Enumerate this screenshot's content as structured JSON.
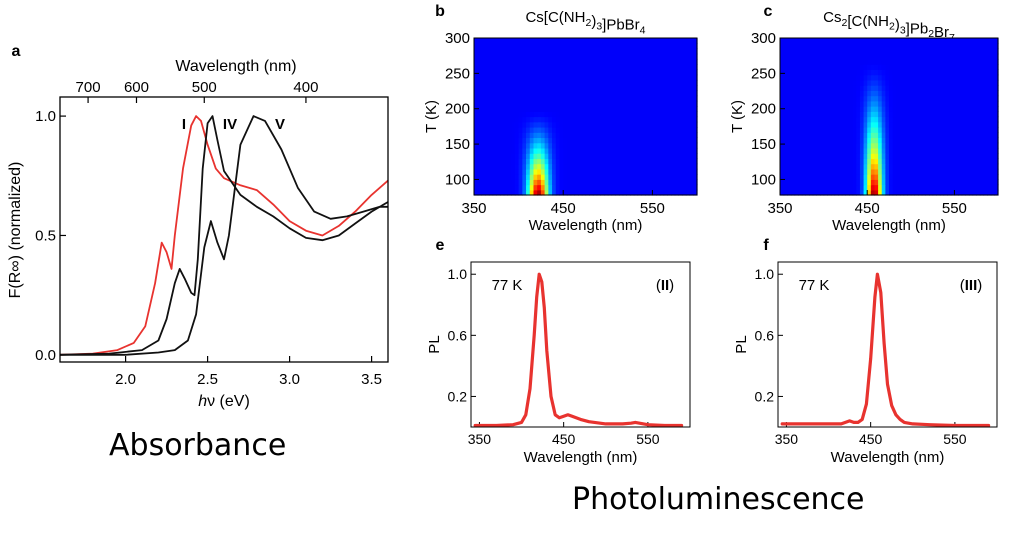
{
  "captions": {
    "absorbance": "Absorbance",
    "photoluminescence": "Photoluminescence"
  },
  "chart_data": [
    {
      "id": "a",
      "panel_letter": "a",
      "type": "line",
      "title": "",
      "xlabel": "hν (eV)",
      "ylabel": "F(R∞) (normalized)",
      "top_xlabel": "Wavelength (nm)",
      "xlim": [
        1.6,
        3.6
      ],
      "ylim": [
        -0.03,
        1.08
      ],
      "xticks": [
        2.0,
        2.5,
        3.0,
        3.5
      ],
      "xtick_labels": [
        "2.0",
        "2.5",
        "3.0",
        "3.5"
      ],
      "yticks": [
        0.0,
        0.5,
        1.0
      ],
      "ytick_labels": [
        "0.0",
        "0.5",
        "1.0"
      ],
      "top_ticks_nm": [
        700,
        600,
        500,
        400
      ],
      "top_tick_labels": [
        "700",
        "600",
        "500",
        "400"
      ],
      "annotations": [
        "I",
        "IV",
        "V"
      ],
      "series": [
        {
          "label": "I",
          "color": "#e8332f",
          "x": [
            1.6,
            1.8,
            1.95,
            2.05,
            2.12,
            2.18,
            2.22,
            2.25,
            2.28,
            2.3,
            2.35,
            2.4,
            2.43,
            2.46,
            2.5,
            2.55,
            2.6,
            2.7,
            2.8,
            2.9,
            3.0,
            3.1,
            3.2,
            3.3,
            3.4,
            3.5,
            3.6
          ],
          "y": [
            0.0,
            0.005,
            0.02,
            0.05,
            0.12,
            0.3,
            0.47,
            0.43,
            0.36,
            0.5,
            0.78,
            0.96,
            1.0,
            0.98,
            0.88,
            0.78,
            0.74,
            0.71,
            0.69,
            0.63,
            0.56,
            0.52,
            0.5,
            0.54,
            0.6,
            0.67,
            0.73
          ]
        },
        {
          "label": "IV",
          "color": "#111111",
          "x": [
            1.6,
            1.9,
            2.1,
            2.2,
            2.25,
            2.3,
            2.33,
            2.36,
            2.4,
            2.42,
            2.44,
            2.47,
            2.5,
            2.53,
            2.56,
            2.6,
            2.7,
            2.8,
            2.9,
            3.0,
            3.1,
            3.2,
            3.3,
            3.4,
            3.5,
            3.6
          ],
          "y": [
            0.0,
            0.005,
            0.02,
            0.06,
            0.15,
            0.3,
            0.36,
            0.32,
            0.26,
            0.25,
            0.4,
            0.78,
            0.97,
            1.0,
            0.9,
            0.77,
            0.67,
            0.62,
            0.58,
            0.53,
            0.49,
            0.48,
            0.5,
            0.55,
            0.6,
            0.64
          ]
        },
        {
          "label": "V",
          "color": "#111111",
          "x": [
            1.6,
            2.0,
            2.2,
            2.3,
            2.38,
            2.43,
            2.48,
            2.52,
            2.56,
            2.6,
            2.63,
            2.7,
            2.78,
            2.85,
            2.95,
            3.05,
            3.15,
            3.25,
            3.35,
            3.45,
            3.55,
            3.6
          ],
          "y": [
            0.0,
            0.0,
            0.01,
            0.02,
            0.06,
            0.17,
            0.45,
            0.56,
            0.47,
            0.4,
            0.5,
            0.88,
            1.0,
            0.98,
            0.86,
            0.7,
            0.6,
            0.57,
            0.58,
            0.6,
            0.62,
            0.62
          ]
        }
      ]
    },
    {
      "id": "b",
      "panel_letter": "b",
      "type": "heatmap",
      "title": "Cs[C(NH₂)₃]PbBr₄",
      "xlabel": "Wavelength (nm)",
      "ylabel": "T (K)",
      "xlim": [
        350,
        600
      ],
      "ylim": [
        78,
        300
      ],
      "xticks": [
        350,
        450,
        550
      ],
      "xtick_labels": [
        "350",
        "450",
        "550"
      ],
      "yticks": [
        100,
        150,
        200,
        250,
        300
      ],
      "ytick_labels": [
        "100",
        "150",
        "200",
        "250",
        "300"
      ],
      "peak_wavelength_nm": 422,
      "peak_width_nm": 11,
      "emission_extent_T": 200
    },
    {
      "id": "c",
      "panel_letter": "c",
      "type": "heatmap",
      "title": "Cs₂[C(NH₂)₃]Pb₂Br₇",
      "xlabel": "Wavelength (nm)",
      "ylabel": "T (K)",
      "xlim": [
        350,
        600
      ],
      "ylim": [
        78,
        300
      ],
      "xticks": [
        350,
        450,
        550
      ],
      "xtick_labels": [
        "350",
        "450",
        "550"
      ],
      "yticks": [
        100,
        150,
        200,
        250,
        300
      ],
      "ytick_labels": [
        "100",
        "150",
        "200",
        "250",
        "300"
      ],
      "peak_wavelength_nm": 458,
      "peak_width_nm": 9,
      "emission_extent_T": 270
    },
    {
      "id": "e",
      "panel_letter": "e",
      "type": "line",
      "title": "",
      "xlabel": "Wavelength (nm)",
      "ylabel": "PL",
      "xlim": [
        340,
        600
      ],
      "ylim": [
        0,
        1.08
      ],
      "xticks": [
        350,
        450,
        550
      ],
      "xtick_labels": [
        "350",
        "450",
        "550"
      ],
      "yticks": [
        0.2,
        0.6,
        1.0
      ],
      "ytick_labels": [
        "0.2",
        "0.6",
        "1.0"
      ],
      "annotations": [
        "77 K",
        "(II)"
      ],
      "series": [
        {
          "color": "#e8332f",
          "x": [
            345,
            370,
            390,
            400,
            405,
            410,
            415,
            418,
            421,
            424,
            427,
            430,
            435,
            440,
            445,
            450,
            455,
            460,
            470,
            480,
            500,
            520,
            530,
            535,
            540,
            550,
            570,
            590
          ],
          "y": [
            0.01,
            0.01,
            0.015,
            0.03,
            0.08,
            0.25,
            0.6,
            0.85,
            1.0,
            0.95,
            0.78,
            0.5,
            0.2,
            0.08,
            0.06,
            0.07,
            0.08,
            0.07,
            0.05,
            0.035,
            0.02,
            0.02,
            0.025,
            0.03,
            0.025,
            0.015,
            0.01,
            0.01
          ]
        }
      ]
    },
    {
      "id": "f",
      "panel_letter": "f",
      "type": "line",
      "title": "",
      "xlabel": "Wavelength (nm)",
      "ylabel": "PL",
      "xlim": [
        340,
        600
      ],
      "ylim": [
        0,
        1.08
      ],
      "xticks": [
        350,
        450,
        550
      ],
      "xtick_labels": [
        "350",
        "450",
        "550"
      ],
      "yticks": [
        0.2,
        0.6,
        1.0
      ],
      "ytick_labels": [
        "0.2",
        "0.6",
        "1.0"
      ],
      "annotations": [
        "77 K",
        "(III)"
      ],
      "series": [
        {
          "color": "#e8332f",
          "x": [
            345,
            380,
            400,
            415,
            420,
            425,
            430,
            435,
            440,
            445,
            450,
            455,
            458,
            462,
            466,
            470,
            475,
            480,
            485,
            490,
            500,
            520,
            550,
            590
          ],
          "y": [
            0.02,
            0.02,
            0.02,
            0.02,
            0.03,
            0.04,
            0.03,
            0.03,
            0.05,
            0.15,
            0.45,
            0.85,
            1.0,
            0.88,
            0.55,
            0.28,
            0.14,
            0.08,
            0.05,
            0.03,
            0.02,
            0.015,
            0.01,
            0.01
          ]
        }
      ]
    }
  ]
}
